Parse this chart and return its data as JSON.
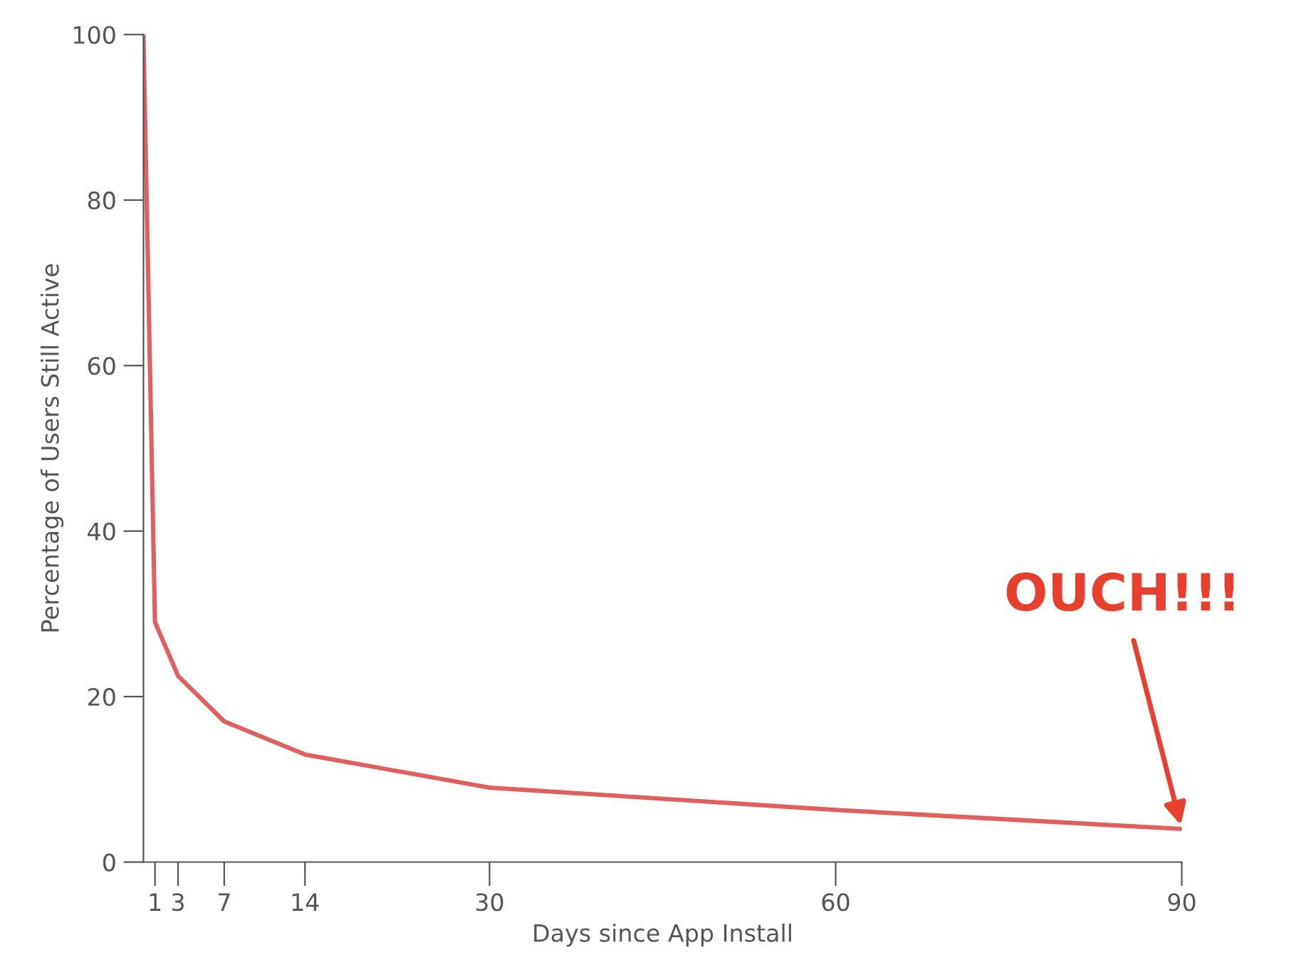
{
  "chart_data": {
    "type": "line",
    "xlabel": "Days since App Install",
    "ylabel": "Percentage of Users Still Active",
    "x": [
      0,
      1,
      3,
      7,
      14,
      30,
      60,
      90
    ],
    "series": [
      {
        "color": "#e06060",
        "values": [
          100,
          29,
          22.5,
          17,
          13,
          9,
          6.3,
          4
        ]
      }
    ],
    "xlim": [
      0,
      90
    ],
    "xticks": [
      1,
      3,
      7,
      14,
      30,
      60,
      90
    ],
    "ylim": [
      0,
      100
    ],
    "yticks": [
      0,
      20,
      40,
      60,
      80,
      100
    ],
    "grid": false,
    "legend": false,
    "marker": "none",
    "line_style": "solid",
    "annotations": [
      {
        "text": "OUCH!!!",
        "x": 90,
        "y": 4
      }
    ]
  }
}
